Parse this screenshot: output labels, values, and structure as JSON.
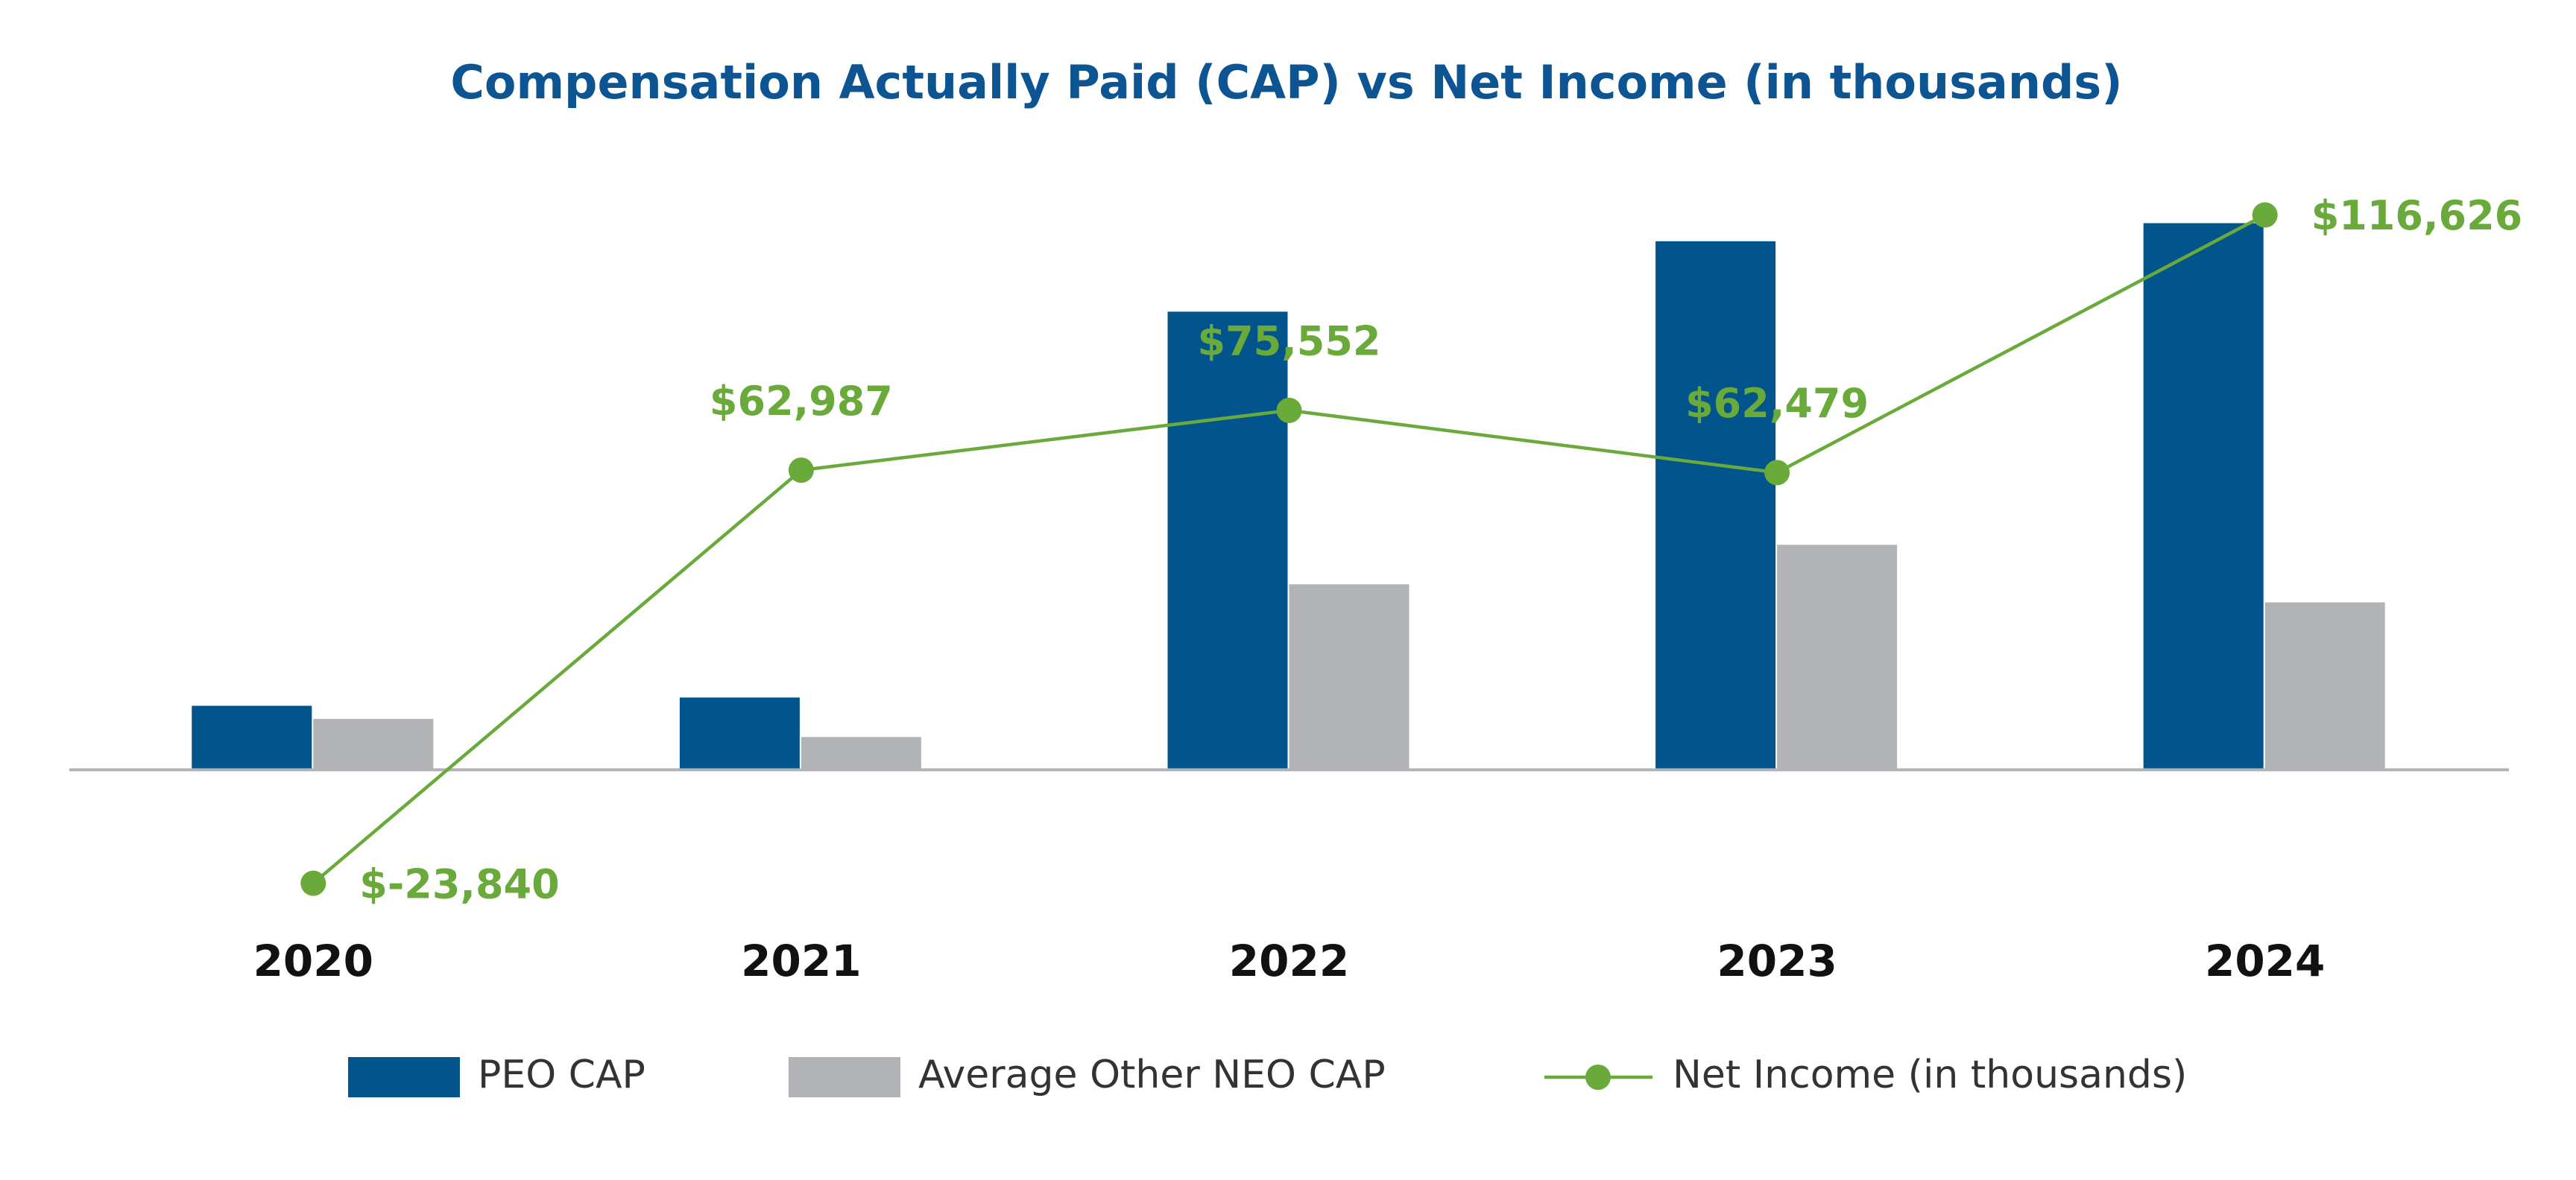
{
  "chart_data": {
    "type": "bar_line",
    "title": "Compensation Actually Paid (CAP) vs Net Income (in thousands)",
    "categories": [
      "2020",
      "2021",
      "2022",
      "2023",
      "2024"
    ],
    "series": [
      {
        "name": "PEO CAP",
        "type": "bar",
        "color": "#02548c",
        "values": [
          13460,
          15200,
          96300,
          111100,
          114900
        ]
      },
      {
        "name": "Average Other NEO CAP",
        "type": "bar",
        "color": "#b2b3b6",
        "values": [
          10700,
          6900,
          39000,
          47300,
          35200
        ]
      },
      {
        "name": "Net Income (in thousands)",
        "type": "line",
        "color": "#6aaa3a",
        "values": [
          -23840,
          62987,
          75552,
          62479,
          116626
        ],
        "value_labels": [
          "$-23,840",
          "$62,987",
          "$75,552",
          "$62,479",
          "$116,626"
        ]
      }
    ],
    "ylim": [
      -30000,
      120000
    ],
    "legend": "bottom"
  }
}
